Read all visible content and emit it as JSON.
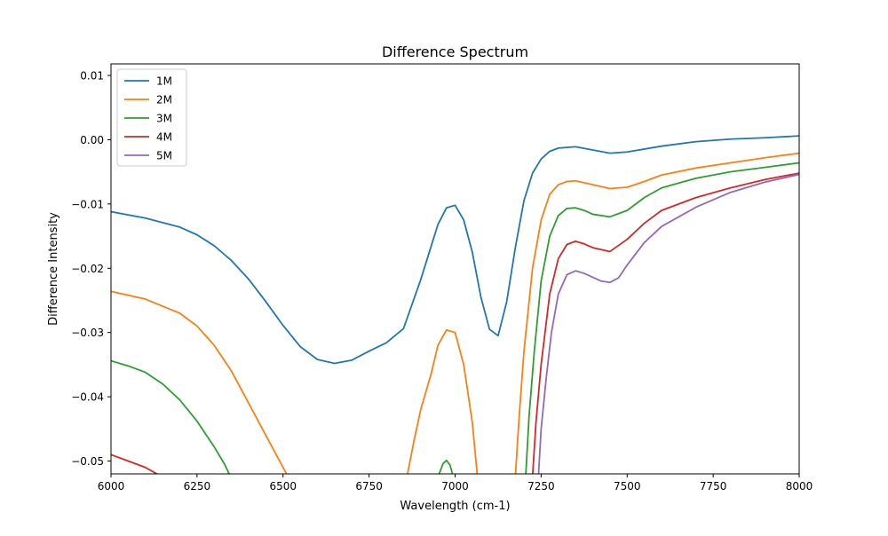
{
  "chart_data": {
    "type": "line",
    "title": "Difference Spectrum",
    "xlabel": "Wavelength (cm-1)",
    "ylabel": "Difference Intensity",
    "xlim": [
      6000,
      8000
    ],
    "ylim": [
      -0.052,
      0.0118
    ],
    "xticks": [
      6000,
      6250,
      6500,
      6750,
      7000,
      7250,
      7500,
      7750,
      8000
    ],
    "xtick_labels": [
      "6000",
      "6250",
      "6500",
      "6750",
      "7000",
      "7250",
      "7500",
      "7750",
      "8000"
    ],
    "yticks": [
      0.01,
      0.0,
      -0.01,
      -0.02,
      -0.03,
      -0.04,
      -0.05
    ],
    "ytick_labels": [
      "0.01",
      "0.00",
      "−0.01",
      "−0.02",
      "−0.03",
      "−0.04",
      "−0.05"
    ],
    "grid": false,
    "legend_position": "top-left",
    "series": [
      {
        "name": "1M",
        "color": "#1f77b4",
        "x": [
          6000,
          6100,
          6200,
          6250,
          6300,
          6350,
          6400,
          6450,
          6500,
          6550,
          6600,
          6650,
          6700,
          6750,
          6800,
          6850,
          6900,
          6950,
          6975,
          7000,
          7025,
          7050,
          7075,
          7100,
          7125,
          7150,
          7175,
          7200,
          7225,
          7250,
          7275,
          7300,
          7350,
          7400,
          7450,
          7500,
          7600,
          7700,
          7800,
          7900,
          8000
        ],
        "y": [
          -0.0112,
          -0.0122,
          -0.0136,
          -0.0148,
          -0.0165,
          -0.0188,
          -0.0217,
          -0.0252,
          -0.0289,
          -0.0322,
          -0.0342,
          -0.0348,
          -0.0343,
          -0.0329,
          -0.0316,
          -0.0294,
          -0.0218,
          -0.0132,
          -0.0106,
          -0.0102,
          -0.0125,
          -0.0175,
          -0.0245,
          -0.0295,
          -0.0305,
          -0.0252,
          -0.0168,
          -0.0095,
          -0.0052,
          -0.003,
          -0.0018,
          -0.0013,
          -0.0011,
          -0.0016,
          -0.0021,
          -0.0019,
          -0.001,
          -0.0003,
          0.0001,
          0.0003,
          0.0006
        ]
      },
      {
        "name": "2M",
        "color": "#ff7f0e",
        "x": [
          6000,
          6100,
          6200,
          6250,
          6300,
          6350,
          6400,
          6450,
          6500,
          6515,
          6860,
          6880,
          6900,
          6930,
          6950,
          6975,
          7000,
          7025,
          7050,
          7065,
          7175,
          7185,
          7200,
          7225,
          7250,
          7275,
          7300,
          7325,
          7350,
          7400,
          7450,
          7500,
          7550,
          7600,
          7700,
          7800,
          7900,
          8000
        ],
        "y": [
          -0.0236,
          -0.0248,
          -0.027,
          -0.029,
          -0.032,
          -0.036,
          -0.041,
          -0.046,
          -0.051,
          -0.0525,
          -0.0525,
          -0.047,
          -0.042,
          -0.0365,
          -0.032,
          -0.0296,
          -0.03,
          -0.035,
          -0.044,
          -0.0525,
          -0.0525,
          -0.044,
          -0.033,
          -0.02,
          -0.0125,
          -0.0085,
          -0.007,
          -0.0065,
          -0.0064,
          -0.007,
          -0.0076,
          -0.0074,
          -0.0065,
          -0.0055,
          -0.0044,
          -0.0036,
          -0.0028,
          -0.0021
        ]
      },
      {
        "name": "3M",
        "color": "#2ca02c",
        "x": [
          6000,
          6050,
          6100,
          6150,
          6200,
          6250,
          6300,
          6330,
          6348,
          "__gap__",
          6950,
          6965,
          6975,
          6985,
          6995,
          "__gap__",
          7205,
          7215,
          7230,
          7250,
          7275,
          7300,
          7325,
          7350,
          7375,
          7400,
          7450,
          7500,
          7550,
          7600,
          7700,
          7800,
          7900,
          8000
        ],
        "y": [
          -0.0344,
          -0.0352,
          -0.0362,
          -0.038,
          -0.0405,
          -0.0438,
          -0.0478,
          -0.0505,
          -0.0525,
          null,
          -0.0525,
          -0.0504,
          -0.0499,
          -0.0506,
          -0.0525,
          null,
          -0.0525,
          -0.043,
          -0.033,
          -0.022,
          -0.015,
          -0.0118,
          -0.0107,
          -0.0106,
          -0.011,
          -0.0116,
          -0.012,
          -0.011,
          -0.009,
          -0.0075,
          -0.006,
          -0.005,
          -0.0043,
          -0.0036
        ]
      },
      {
        "name": "4M",
        "color": "#d62728",
        "x": [
          6000,
          6050,
          6100,
          6140,
          6170,
          "__gap__",
          7225,
          7235,
          7250,
          7275,
          7300,
          7325,
          7350,
          7375,
          7400,
          7450,
          7500,
          7550,
          7600,
          7700,
          7800,
          7900,
          8000
        ],
        "y": [
          -0.049,
          -0.05,
          -0.051,
          -0.0522,
          -0.053,
          null,
          -0.0525,
          -0.044,
          -0.035,
          -0.024,
          -0.0185,
          -0.0163,
          -0.0158,
          -0.0162,
          -0.0168,
          -0.0174,
          -0.0155,
          -0.013,
          -0.011,
          -0.009,
          -0.0075,
          -0.0062,
          -0.0052
        ]
      },
      {
        "name": "5M",
        "color": "#9467bd",
        "x": [
          7242,
          7250,
          7265,
          7280,
          7300,
          7325,
          7350,
          7375,
          7400,
          7425,
          7450,
          7475,
          7500,
          7550,
          7600,
          7700,
          7800,
          7900,
          8000
        ],
        "y": [
          -0.0525,
          -0.045,
          -0.037,
          -0.03,
          -0.024,
          -0.021,
          -0.0204,
          -0.0208,
          -0.0214,
          -0.022,
          -0.0222,
          -0.0215,
          -0.0195,
          -0.016,
          -0.0135,
          -0.0105,
          -0.0082,
          -0.0066,
          -0.0054
        ]
      }
    ]
  }
}
